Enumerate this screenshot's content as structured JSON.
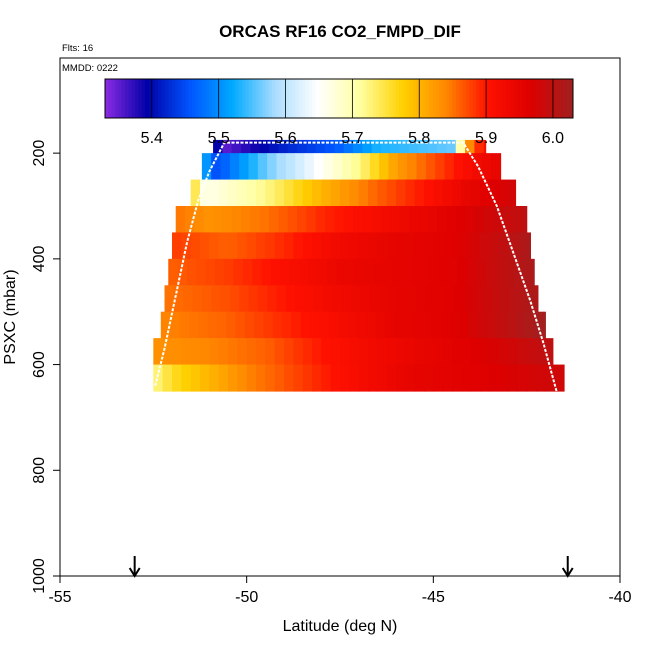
{
  "chart_data": {
    "type": "heatmap",
    "title": "ORCAS RF16 CO2_FMPD_DIF",
    "flts_label": "Flts: 16",
    "mmdd_label": "MMDD: 0222",
    "xlabel": "Latitude (deg N)",
    "ylabel": "PSXC (mbar)",
    "xlim": [
      -55,
      -40
    ],
    "ylim": [
      1000,
      20
    ],
    "x_ticks": [
      -55,
      -50,
      -45,
      -40
    ],
    "x_tick_labels": [
      "-55",
      "-50",
      "-45",
      "-40"
    ],
    "y_ticks": [
      200,
      400,
      600,
      800,
      1000
    ],
    "y_tick_labels": [
      "200",
      "400",
      "600",
      "800",
      "1000"
    ],
    "colorbar": {
      "range": [
        5.33,
        6.03
      ],
      "ticks": [
        5.4,
        5.5,
        5.6,
        5.7,
        5.8,
        5.9,
        6.0
      ],
      "tick_labels": [
        "5.4",
        "5.5",
        "5.6",
        "5.7",
        "5.8",
        "5.9",
        "6.0"
      ],
      "colors": [
        "#8B2BE2",
        "#0000A8",
        "#0055FF",
        "#00AAFF",
        "#AADDFF",
        "#FFFFFF",
        "#FFFFA0",
        "#FFD000",
        "#FF8800",
        "#FF1100",
        "#DD0000",
        "#A02020"
      ]
    },
    "bin_width_deg": 0.25,
    "rows": [
      {
        "p_top": 175,
        "p_bot": 200,
        "lat_start": -50.9,
        "lat_end": -43.6,
        "stops": [
          [
            -50.9,
            5.42
          ],
          [
            -50.6,
            5.35
          ],
          [
            -49.0,
            5.42
          ],
          [
            -47.6,
            5.46
          ],
          [
            -46.5,
            5.53
          ],
          [
            -44.5,
            5.56
          ],
          [
            -44.2,
            5.75
          ],
          [
            -44.0,
            5.85
          ],
          [
            -43.6,
            5.92
          ]
        ]
      },
      {
        "p_top": 200,
        "p_bot": 250,
        "lat_start": -51.2,
        "lat_end": -43.2,
        "stops": [
          [
            -51.2,
            5.53
          ],
          [
            -50.8,
            5.45
          ],
          [
            -49.5,
            5.56
          ],
          [
            -48.5,
            5.62
          ],
          [
            -47.0,
            5.72
          ],
          [
            -46.0,
            5.82
          ],
          [
            -45.0,
            5.87
          ],
          [
            -44.0,
            5.92
          ],
          [
            -43.2,
            5.95
          ]
        ]
      },
      {
        "p_top": 250,
        "p_bot": 300,
        "lat_start": -51.5,
        "lat_end": -42.8,
        "stops": [
          [
            -51.5,
            5.78
          ],
          [
            -51.1,
            5.66
          ],
          [
            -49.5,
            5.72
          ],
          [
            -48.0,
            5.8
          ],
          [
            -46.5,
            5.86
          ],
          [
            -45.0,
            5.91
          ],
          [
            -44.0,
            5.95
          ],
          [
            -42.8,
            5.98
          ]
        ]
      },
      {
        "p_top": 300,
        "p_bot": 350,
        "lat_start": -51.9,
        "lat_end": -42.5,
        "stops": [
          [
            -51.9,
            5.85
          ],
          [
            -51.0,
            5.83
          ],
          [
            -49.5,
            5.85
          ],
          [
            -48.0,
            5.89
          ],
          [
            -46.5,
            5.92
          ],
          [
            -45.0,
            5.95
          ],
          [
            -43.5,
            5.98
          ],
          [
            -42.5,
            6.0
          ]
        ]
      },
      {
        "p_top": 350,
        "p_bot": 400,
        "lat_start": -52.0,
        "lat_end": -42.4,
        "stops": [
          [
            -52.0,
            5.88
          ],
          [
            -50.5,
            5.86
          ],
          [
            -49.0,
            5.89
          ],
          [
            -47.5,
            5.93
          ],
          [
            -46.0,
            5.95
          ],
          [
            -44.5,
            5.96
          ],
          [
            -43.0,
            6.0
          ],
          [
            -42.4,
            6.02
          ]
        ]
      },
      {
        "p_top": 400,
        "p_bot": 450,
        "lat_start": -52.1,
        "lat_end": -42.3,
        "stops": [
          [
            -52.1,
            5.86
          ],
          [
            -50.5,
            5.88
          ],
          [
            -49.0,
            5.91
          ],
          [
            -47.5,
            5.94
          ],
          [
            -46.0,
            5.95
          ],
          [
            -44.5,
            5.96
          ],
          [
            -43.0,
            6.0
          ],
          [
            -42.3,
            6.02
          ]
        ]
      },
      {
        "p_top": 450,
        "p_bot": 500,
        "lat_start": -52.2,
        "lat_end": -42.2,
        "stops": [
          [
            -52.2,
            5.85
          ],
          [
            -50.5,
            5.87
          ],
          [
            -49.0,
            5.9
          ],
          [
            -47.5,
            5.93
          ],
          [
            -46.0,
            5.95
          ],
          [
            -44.5,
            5.96
          ],
          [
            -43.0,
            6.0
          ],
          [
            -42.2,
            6.02
          ]
        ]
      },
      {
        "p_top": 500,
        "p_bot": 550,
        "lat_start": -52.3,
        "lat_end": -42.0,
        "stops": [
          [
            -52.3,
            5.84
          ],
          [
            -50.5,
            5.86
          ],
          [
            -49.0,
            5.89
          ],
          [
            -47.5,
            5.92
          ],
          [
            -46.0,
            5.95
          ],
          [
            -44.5,
            5.96
          ],
          [
            -43.0,
            6.0
          ],
          [
            -42.0,
            6.03
          ]
        ]
      },
      {
        "p_top": 550,
        "p_bot": 600,
        "lat_start": -52.5,
        "lat_end": -41.8,
        "stops": [
          [
            -52.5,
            5.83
          ],
          [
            -51.0,
            5.84
          ],
          [
            -49.5,
            5.86
          ],
          [
            -48.0,
            5.9
          ],
          [
            -46.5,
            5.93
          ],
          [
            -45.0,
            5.95
          ],
          [
            -43.5,
            5.97
          ],
          [
            -41.8,
            6.0
          ]
        ]
      },
      {
        "p_top": 600,
        "p_bot": 650,
        "lat_start": -52.5,
        "lat_end": -41.5,
        "stops": [
          [
            -52.5,
            5.72
          ],
          [
            -52.0,
            5.76
          ],
          [
            -51.0,
            5.8
          ],
          [
            -50.0,
            5.84
          ],
          [
            -48.5,
            5.88
          ],
          [
            -47.0,
            5.92
          ],
          [
            -45.5,
            5.95
          ],
          [
            -44.0,
            5.96
          ],
          [
            -42.0,
            5.98
          ],
          [
            -41.5,
            5.98
          ]
        ]
      }
    ],
    "flight_track": [
      [
        -52.45,
        640
      ],
      [
        -52.2,
        570
      ],
      [
        -51.9,
        470
      ],
      [
        -51.6,
        370
      ],
      [
        -51.3,
        290
      ],
      [
        -51.0,
        235
      ],
      [
        -50.6,
        180
      ],
      [
        -44.2,
        180
      ],
      [
        -43.8,
        225
      ],
      [
        -43.3,
        300
      ],
      [
        -42.8,
        400
      ],
      [
        -42.4,
        480
      ],
      [
        -42.05,
        560
      ],
      [
        -41.7,
        650
      ]
    ],
    "arrows_lat": [
      -53.0,
      -41.4
    ]
  }
}
